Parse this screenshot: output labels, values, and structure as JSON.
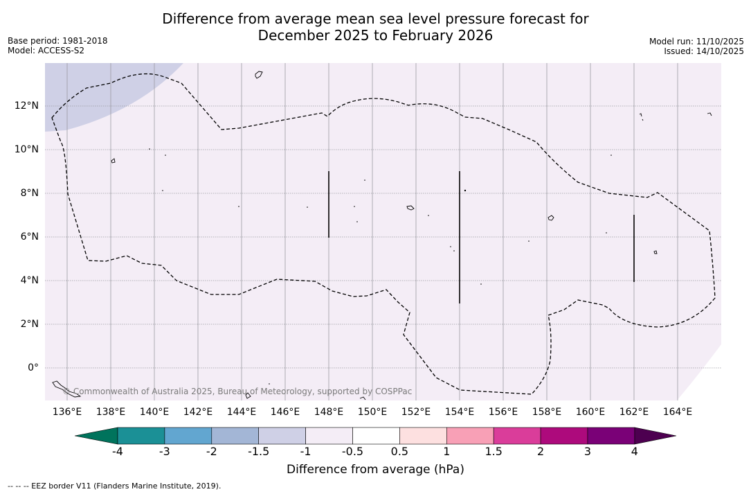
{
  "title": {
    "line1": "Difference from average mean sea level pressure forecast for",
    "line2": "December 2025 to February 2026"
  },
  "meta_left": {
    "base_period": "Base period: 1981-2018",
    "model": "Model: ACCESS-S2"
  },
  "meta_right": {
    "model_run": "Model run: 11/10/2025",
    "issued": "Issued: 14/10/2025"
  },
  "map": {
    "background_color": "#f4edf6",
    "shaded_region_color": "#cfd0e6",
    "lat_labels": [
      "12°N",
      "10°N",
      "8°N",
      "6°N",
      "4°N",
      "2°N",
      "0°"
    ],
    "lon_labels": [
      "136°E",
      "138°E",
      "140°E",
      "142°E",
      "144°E",
      "146°E",
      "148°E",
      "150°E",
      "152°E",
      "154°E",
      "156°E",
      "158°E",
      "160°E",
      "162°E",
      "164°E"
    ],
    "copyright": "© Commonwealth of Australia 2025, Bureau of Meteorology, supported by COSPPac"
  },
  "colorbar": {
    "tick_labels": [
      "-4",
      "-3",
      "-2",
      "-1.5",
      "-1",
      "-0.5",
      "0.5",
      "1",
      "1.5",
      "2",
      "3",
      "4"
    ],
    "colors": [
      "#1b9096",
      "#62a6d0",
      "#a3b6d6",
      "#cfd0e6",
      "#f4edf6",
      "#ffffff",
      "#fde0e0",
      "#f8a0b6",
      "#da3d9a",
      "#ad0a7c",
      "#7a0177"
    ],
    "under_color": "#00735c",
    "over_color": "#4d0050",
    "label": "Difference from average (hPa)"
  },
  "footnote": "--  --  -- EEZ border V11 (Flanders Marine Institute, 2019)."
}
